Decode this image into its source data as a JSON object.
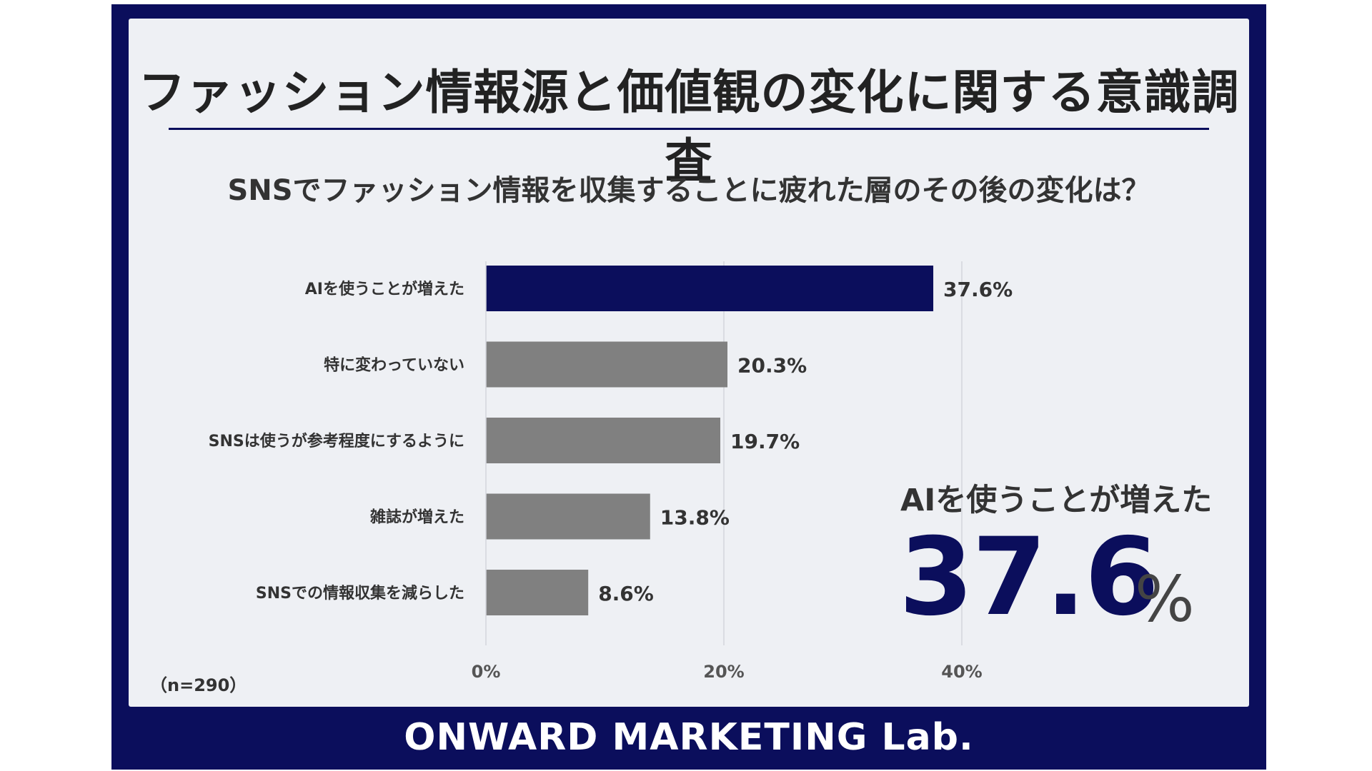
{
  "main_title": "ファッション情報源と価値観の変化に関する意識調査",
  "subtitle": "SNSでファッション情報を収集することに疲れた層のその後の変化は？",
  "sample_note": "（n=290）",
  "highlight": {
    "label": "AIを使うことが増えた",
    "value": "37.6",
    "unit": "%"
  },
  "footer": "ONWARD MARKETING Lab.",
  "colors": {
    "highlight_bar": "#0b0e5c",
    "other_bar": "#808080",
    "frame": "#0b0e5c",
    "panel": "#eef0f4",
    "grid": "#d4d6dc"
  },
  "chart_data": {
    "type": "bar",
    "orientation": "horizontal",
    "categories": [
      "AIを使うことが増えた",
      "特に変わっていない",
      "SNSは使うが参考程度にするように",
      "雑誌が増えた",
      "SNSでの情報収集を減らした"
    ],
    "values": [
      37.6,
      20.3,
      19.7,
      13.8,
      8.6
    ],
    "value_labels": [
      "37.6%",
      "20.3%",
      "19.7%",
      "13.8%",
      "8.6%"
    ],
    "x_ticks": [
      "0%",
      "20%",
      "40%"
    ],
    "xlim": [
      0,
      40
    ],
    "grid": true,
    "highlight_index": 0
  }
}
